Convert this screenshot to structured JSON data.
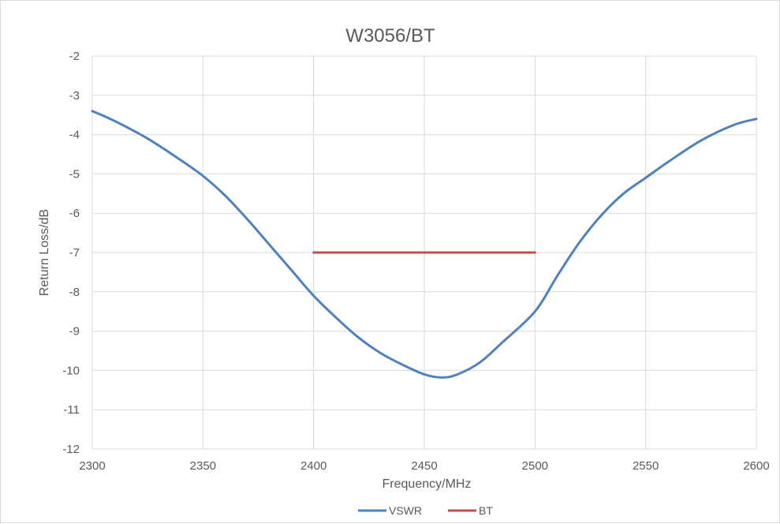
{
  "chart_data": {
    "type": "line",
    "title": "W3056/BT",
    "xlabel": "Frequency/MHz",
    "ylabel": "Return Loss/dB",
    "xlim": [
      2300,
      2600
    ],
    "ylim": [
      -12,
      -2
    ],
    "x_ticks": [
      "2300",
      "2350",
      "2400",
      "2450",
      "2500",
      "2550",
      "2600"
    ],
    "y_ticks": [
      "-2",
      "-3",
      "-4",
      "-5",
      "-6",
      "-7",
      "-8",
      "-9",
      "-10",
      "-11",
      "-12"
    ],
    "grid": true,
    "legend_position": "bottom",
    "series": [
      {
        "name": "VSWR",
        "color": "#4f81bd",
        "x": [
          2300,
          2310,
          2325,
          2340,
          2350,
          2360,
          2370,
          2380,
          2390,
          2400,
          2410,
          2420,
          2430,
          2440,
          2450,
          2458,
          2465,
          2475,
          2485,
          2500,
          2510,
          2520,
          2530,
          2540,
          2550,
          2560,
          2575,
          2590,
          2600
        ],
        "y": [
          -3.4,
          -3.65,
          -4.1,
          -4.65,
          -5.05,
          -5.55,
          -6.15,
          -6.8,
          -7.45,
          -8.1,
          -8.65,
          -9.15,
          -9.55,
          -9.85,
          -10.1,
          -10.18,
          -10.1,
          -9.8,
          -9.3,
          -8.5,
          -7.6,
          -6.75,
          -6.05,
          -5.5,
          -5.1,
          -4.7,
          -4.15,
          -3.75,
          -3.6
        ]
      },
      {
        "name": "BT",
        "color": "#c0504d",
        "x": [
          2400,
          2500
        ],
        "y": [
          -7,
          -7
        ]
      }
    ]
  }
}
